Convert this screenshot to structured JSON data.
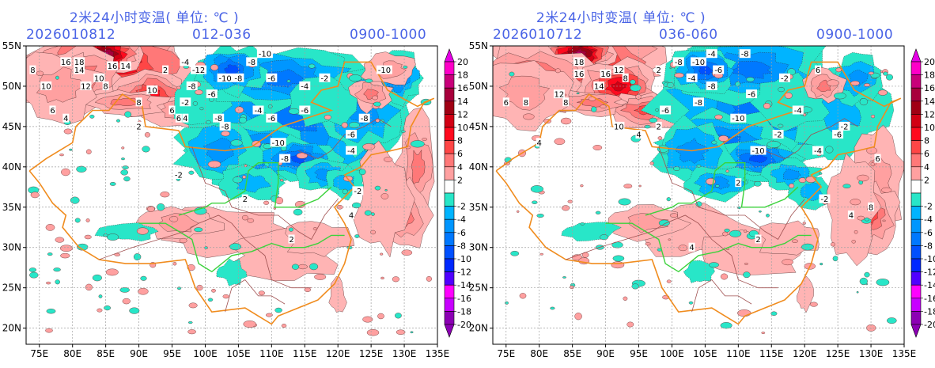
{
  "figure": {
    "title_unit": "℃",
    "variable": "2m 24h temperature change"
  },
  "panels": [
    {
      "id": "left",
      "title": "2米24小时变温( 单位: ℃ )",
      "init_time": "2026010812",
      "forecast_hours": "012-036",
      "valid_window": "0900-1000",
      "summary": {
        "warm_labels": [
          "18",
          "16",
          "16",
          "14",
          "14",
          "12",
          "12",
          "10",
          "10",
          "10",
          "10",
          "8",
          "8",
          "8",
          "6",
          "6",
          "6",
          "4",
          "4",
          "4",
          "2",
          "2",
          "2",
          "2"
        ],
        "cold_labels": [
          "-12",
          "-10",
          "-10",
          "-10",
          "-10",
          "-8",
          "-8",
          "-8",
          "-8",
          "-8",
          "-8",
          "-8",
          "-6",
          "-6",
          "-6",
          "-6",
          "-6",
          "-4",
          "-4",
          "-4",
          "-4",
          "-2",
          "-2",
          "-2",
          "-2"
        ]
      }
    },
    {
      "id": "right",
      "title": "2米24小时变温( 单位: ℃ )",
      "init_time": "2026010712",
      "forecast_hours": "036-060",
      "valid_window": "0900-1000",
      "summary": {
        "warm_labels": [
          "18",
          "16",
          "16",
          "16",
          "14",
          "12",
          "12",
          "10",
          "8",
          "8",
          "8",
          "8",
          "6",
          "6",
          "6",
          "6",
          "4",
          "4",
          "4",
          "4",
          "2",
          "2",
          "2"
        ],
        "cold_labels": [
          "-10",
          "-10",
          "-10",
          "-8",
          "-8",
          "-8",
          "-8",
          "-8",
          "-6",
          "-6",
          "-6",
          "-6",
          "-6",
          "-4",
          "-4",
          "-4",
          "-4",
          "-2",
          "-2",
          "-2",
          "-2"
        ]
      }
    }
  ],
  "axes": {
    "lon_ticks": [
      "75E",
      "80E",
      "85E",
      "90E",
      "95E",
      "100E",
      "105E",
      "110E",
      "115E",
      "120E",
      "125E",
      "130E",
      "135E"
    ],
    "lon_values": [
      75,
      80,
      85,
      90,
      95,
      100,
      105,
      110,
      115,
      120,
      125,
      130,
      135
    ],
    "lat_ticks": [
      "55N",
      "50N",
      "45N",
      "40N",
      "35N",
      "30N",
      "25N",
      "20N"
    ],
    "lat_values": [
      55,
      50,
      45,
      40,
      35,
      30,
      25,
      20
    ],
    "lon_range": [
      73,
      135
    ],
    "lat_range": [
      18,
      55
    ],
    "grid": true
  },
  "colorbar": {
    "levels": [
      "20",
      "18",
      "16",
      "14",
      "12",
      "10",
      "8",
      "6",
      "4",
      "2",
      "-2",
      "-4",
      "-6",
      "-8",
      "-10",
      "-12",
      "-14",
      "-16",
      "-18",
      "-20"
    ],
    "colors": [
      "#ff00c8",
      "#c8007a",
      "#a8003c",
      "#a00014",
      "#d20014",
      "#ff0a1e",
      "#ff4646",
      "#ff7878",
      "#ffa0a0",
      "#ffffff",
      "#28e6c8",
      "#00b4ff",
      "#0096ff",
      "#0078ff",
      "#0050ff",
      "#0028ff",
      "#5000ff",
      "#ff00ff",
      "#c800ff",
      "#8c00b4"
    ],
    "above_color": "#e600e6",
    "below_color": "#8c00b4"
  },
  "colors": {
    "text_blue": "#4a64e6",
    "border_orange": "#f08c1e",
    "river_green": "#3cd23c",
    "province_brown": "#a05050",
    "grid_gray": "#a0a0a0"
  }
}
